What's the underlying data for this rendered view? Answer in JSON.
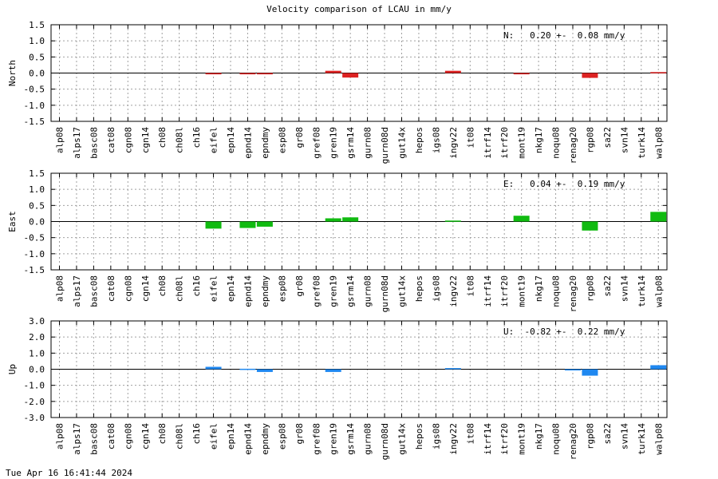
{
  "title": "Velocity comparison of LCAU in mm/y",
  "footer": "Tue Apr 16 16:41:44 2024",
  "chart_data": {
    "type": "bar",
    "title": "Velocity comparison of LCAU in mm/y",
    "categories": [
      "alp08",
      "alps17",
      "basc08",
      "cat08",
      "cgn08",
      "cgn14",
      "ch08",
      "ch08l",
      "ch16",
      "eifel",
      "epn14",
      "epnd14",
      "epndmy",
      "esp08",
      "gr08",
      "gref08",
      "gren19",
      "gsrm14",
      "gurn08",
      "gurn08d",
      "gut14x",
      "hepos",
      "igs08",
      "ingv22",
      "it08",
      "itrf14",
      "itrf20",
      "mont19",
      "nkg17",
      "noqu08",
      "renag20",
      "rgp08",
      "sa22",
      "svn14",
      "turk14",
      "walp08"
    ],
    "grid": true,
    "panels": [
      {
        "ylabel": "North",
        "color": "#dd2222",
        "ylim": [
          -1.5,
          1.5
        ],
        "yticks": [
          "1.5",
          "1.0",
          "0.5",
          "0.0",
          "-0.5",
          "-1.0",
          "-1.5"
        ],
        "stat": "N:   0.20 +-  0.08 mm/y",
        "values": {
          "eifel": -0.04,
          "epnd14": -0.04,
          "epndmy": -0.04,
          "gren19": 0.07,
          "gsrm14": -0.14,
          "ingv22": 0.07,
          "mont19": -0.04,
          "rgp08": -0.15,
          "walp08": 0.03
        }
      },
      {
        "ylabel": "East",
        "color": "#11bb11",
        "ylim": [
          -1.5,
          1.5
        ],
        "yticks": [
          "1.5",
          "1.0",
          "0.5",
          "0.0",
          "-0.5",
          "-1.0",
          "-1.5"
        ],
        "stat": "E:   0.04 +-  0.19 mm/y",
        "values": {
          "eifel": -0.22,
          "epnd14": -0.2,
          "epndmy": -0.16,
          "gren19": 0.1,
          "gsrm14": 0.13,
          "ingv22": 0.03,
          "mont19": 0.18,
          "rgp08": -0.28,
          "walp08": 0.3
        }
      },
      {
        "ylabel": "Up",
        "color": "#1f88f0",
        "ylim": [
          -3.0,
          3.0
        ],
        "yticks": [
          "3.0",
          "2.0",
          "1.0",
          "0.0",
          "-1.0",
          "-2.0",
          "-3.0"
        ],
        "stat": "U:  -0.82 +-  0.22 mm/y",
        "values": {
          "eifel": 0.15,
          "epnd14": 0.03,
          "epndmy": -0.17,
          "gren19": -0.17,
          "ingv22": 0.07,
          "renag20": -0.05,
          "rgp08": -0.4,
          "walp08": 0.25
        }
      }
    ]
  }
}
